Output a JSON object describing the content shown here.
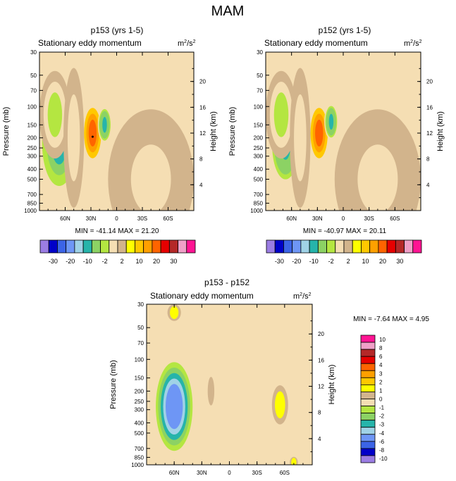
{
  "figure_title": "MAM",
  "chart_data": [
    {
      "type": "heatmap",
      "panel": "top-left",
      "title": "p153 (yrs 1-5)",
      "left_string": "Stationary eddy momentum",
      "units": "m2/s2",
      "units_base": "m",
      "units_exp1": "2",
      "units_mid": "/s",
      "units_exp2": "2",
      "ylabel": "Pressure (mb)",
      "ylabel_right": "Height (km)",
      "xticks": [
        "60N",
        "30N",
        "0",
        "30S",
        "60S"
      ],
      "xtick_lat": [
        60,
        30,
        0,
        -30,
        -60
      ],
      "xlim": [
        90,
        -90
      ],
      "pressure_ticks": [
        "30",
        "50",
        "70",
        "100",
        "150",
        "200",
        "250",
        "300",
        "400",
        "500",
        "700",
        "850",
        "1000"
      ],
      "pressure_values": [
        30,
        50,
        70,
        100,
        150,
        200,
        250,
        300,
        400,
        500,
        700,
        850,
        1000
      ],
      "height_ticks": [
        "20",
        "16",
        "12",
        "8",
        "4"
      ],
      "height_values": [
        20,
        16,
        12,
        8,
        4
      ],
      "min_max": "MIN = -41.14  MAX = 21.20",
      "min": -41.14,
      "max": 21.2,
      "background": "#f5deb3",
      "features": [
        {
          "lat": 67,
          "p": 220,
          "value": -15,
          "lat_width": 10,
          "p_width": 0.55
        },
        {
          "lat": 72,
          "p": 120,
          "value": -3,
          "lat_width": 9,
          "p_width": 0.55
        },
        {
          "lat": 50,
          "p": 200,
          "value": -2,
          "lat_width": 6,
          "p_width": 0.9
        },
        {
          "lat": 28,
          "p": 180,
          "value": 15,
          "lat_width": 5,
          "p_width": 0.3
        },
        {
          "lat": 14,
          "p": 150,
          "value": -12,
          "lat_width": 4,
          "p_width": 0.2
        },
        {
          "lat": -25,
          "p": 200,
          "value": -10,
          "lat_width": 2,
          "p_width": 0.1
        },
        {
          "lat": -40,
          "p": 500,
          "value": -1.5,
          "lat_width": 25,
          "p_width": 0.9
        }
      ]
    },
    {
      "type": "heatmap",
      "panel": "top-right",
      "title": "p152 (yrs 1-5)",
      "left_string": "Stationary eddy momentum",
      "units": "m2/s2",
      "units_base": "m",
      "units_exp1": "2",
      "units_mid": "/s",
      "units_exp2": "2",
      "ylabel": "Pressure (mb)",
      "ylabel_right": "Height (km)",
      "xticks": [
        "60N",
        "30N",
        "0",
        "30S",
        "60S"
      ],
      "xtick_lat": [
        60,
        30,
        0,
        -30,
        -60
      ],
      "xlim": [
        90,
        -90
      ],
      "pressure_ticks": [
        "30",
        "50",
        "70",
        "100",
        "150",
        "200",
        "250",
        "300",
        "400",
        "500",
        "700",
        "850",
        "1000"
      ],
      "pressure_values": [
        30,
        50,
        70,
        100,
        150,
        200,
        250,
        300,
        400,
        500,
        700,
        850,
        1000
      ],
      "height_ticks": [
        "20",
        "16",
        "12",
        "8",
        "4"
      ],
      "height_values": [
        20,
        16,
        12,
        8,
        4
      ],
      "min_max": "MIN = -40.97  MAX = 20.11",
      "min": -40.97,
      "max": 20.11,
      "background": "#f5deb3",
      "features": [
        {
          "lat": 67,
          "p": 230,
          "value": -12,
          "lat_width": 9,
          "p_width": 0.5
        },
        {
          "lat": 72,
          "p": 120,
          "value": -3,
          "lat_width": 9,
          "p_width": 0.55
        },
        {
          "lat": 50,
          "p": 200,
          "value": -2,
          "lat_width": 6,
          "p_width": 0.9
        },
        {
          "lat": 28,
          "p": 180,
          "value": 15,
          "lat_width": 5,
          "p_width": 0.3
        },
        {
          "lat": 14,
          "p": 140,
          "value": -12,
          "lat_width": 4,
          "p_width": 0.2
        },
        {
          "lat": -40,
          "p": 500,
          "value": -1.5,
          "lat_width": 25,
          "p_width": 0.9
        }
      ]
    },
    {
      "type": "heatmap",
      "panel": "bottom",
      "title": "p153 - p152",
      "left_string": "Stationary eddy momentum",
      "units": "m2/s2",
      "units_base": "m",
      "units_exp1": "2",
      "units_mid": "/s",
      "units_exp2": "2",
      "ylabel": "Pressure (mb)",
      "ylabel_right": "Height (km)",
      "xticks": [
        "60N",
        "30N",
        "0",
        "30S",
        "60S"
      ],
      "xtick_lat": [
        60,
        30,
        0,
        -30,
        -60
      ],
      "xlim": [
        90,
        -90
      ],
      "pressure_ticks": [
        "30",
        "50",
        "70",
        "100",
        "150",
        "200",
        "250",
        "300",
        "400",
        "500",
        "700",
        "850",
        "1000"
      ],
      "pressure_values": [
        30,
        50,
        70,
        100,
        150,
        200,
        250,
        300,
        400,
        500,
        700,
        850,
        1000
      ],
      "height_ticks": [
        "20",
        "16",
        "12",
        "8",
        "4"
      ],
      "height_values": [
        20,
        16,
        12,
        8,
        4
      ],
      "min_max": "MIN =  -7.64  MAX =   4.95",
      "min": -7.64,
      "max": 4.95,
      "background": "#f5deb3",
      "features": [
        {
          "lat": 60,
          "p": 280,
          "value": -6,
          "lat_width": 10,
          "p_width": 0.55
        },
        {
          "lat": 60,
          "p": 36,
          "value": 3,
          "lat_width": 5,
          "p_width": 0.1
        },
        {
          "lat": 20,
          "p": 200,
          "value": 2,
          "lat_width": 3,
          "p_width": 0.25
        },
        {
          "lat": -55,
          "p": 270,
          "value": 3,
          "lat_width": 6,
          "p_width": 0.3
        },
        {
          "lat": -70,
          "p": 950,
          "value": 3,
          "lat_width": 3,
          "p_width": 0.05
        }
      ]
    }
  ],
  "colorbar_top": {
    "labels": [
      "-30",
      "-20",
      "-10",
      "-2",
      "2",
      "10",
      "20",
      "30"
    ],
    "levels": [
      -40,
      -30,
      -25,
      -20,
      -15,
      -10,
      -5,
      -2,
      -1,
      1,
      2,
      5,
      10,
      15,
      20,
      25,
      30
    ],
    "colors": [
      "#9b7de3",
      "#0000c8",
      "#3c64e6",
      "#6e96f5",
      "#a0d2e6",
      "#26b4aa",
      "#8cd264",
      "#b4e641",
      "#f5deb3",
      "#d2b48c",
      "#ffff00",
      "#ffc800",
      "#ffa000",
      "#ff6400",
      "#e60000",
      "#b42828",
      "#f0a0c8",
      "#ff1493"
    ]
  },
  "colorbar_bottom": {
    "labels": [
      "10",
      "8",
      "6",
      "4",
      "3",
      "2",
      "1",
      "0",
      "-1",
      "-2",
      "-3",
      "-4",
      "-6",
      "-8",
      "-10"
    ],
    "levels": [
      -10,
      -8,
      -6,
      -4,
      -3,
      -2,
      -1,
      0,
      1,
      2,
      3,
      4,
      6,
      8,
      10
    ],
    "colors": [
      "#9b7de3",
      "#0000c8",
      "#3c64e6",
      "#6e96f5",
      "#a0d2e6",
      "#26b4aa",
      "#8cd264",
      "#b4e641",
      "#f5deb3",
      "#d2b48c",
      "#ffff00",
      "#ffc800",
      "#ffa000",
      "#ff6400",
      "#e60000",
      "#b42828",
      "#f0a0c8",
      "#ff1493"
    ]
  },
  "colors": {
    "frame": "#000000",
    "background": "#ffffff",
    "accent": "#26b4aa"
  }
}
